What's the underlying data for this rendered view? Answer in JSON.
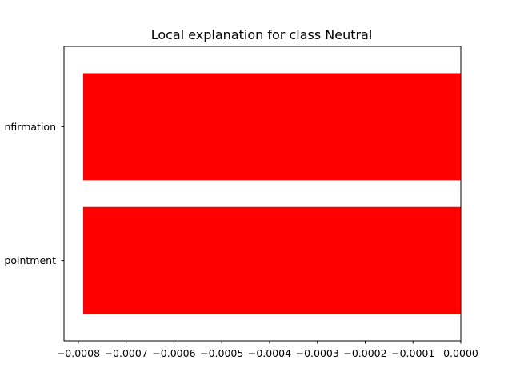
{
  "chart_data": {
    "type": "bar",
    "orientation": "horizontal",
    "title": "Local explanation for class Neutral",
    "xlabel": "",
    "ylabel": "",
    "categories": [
      "nfirmation",
      "pointment"
    ],
    "values": [
      -0.00079,
      -0.00079
    ],
    "xlim": [
      -0.00083,
      0.0
    ],
    "x_ticks": [
      -0.0008,
      -0.0007,
      -0.0006,
      -0.0005,
      -0.0004,
      -0.0003,
      -0.0002,
      -0.0001,
      0.0
    ],
    "x_tick_labels": [
      "−0.0008",
      "−0.0007",
      "−0.0006",
      "−0.0005",
      "−0.0004",
      "−0.0003",
      "−0.0002",
      "−0.0001",
      "0.0000"
    ],
    "bar_color": "#ff0000",
    "grid": false,
    "legend": "none"
  }
}
